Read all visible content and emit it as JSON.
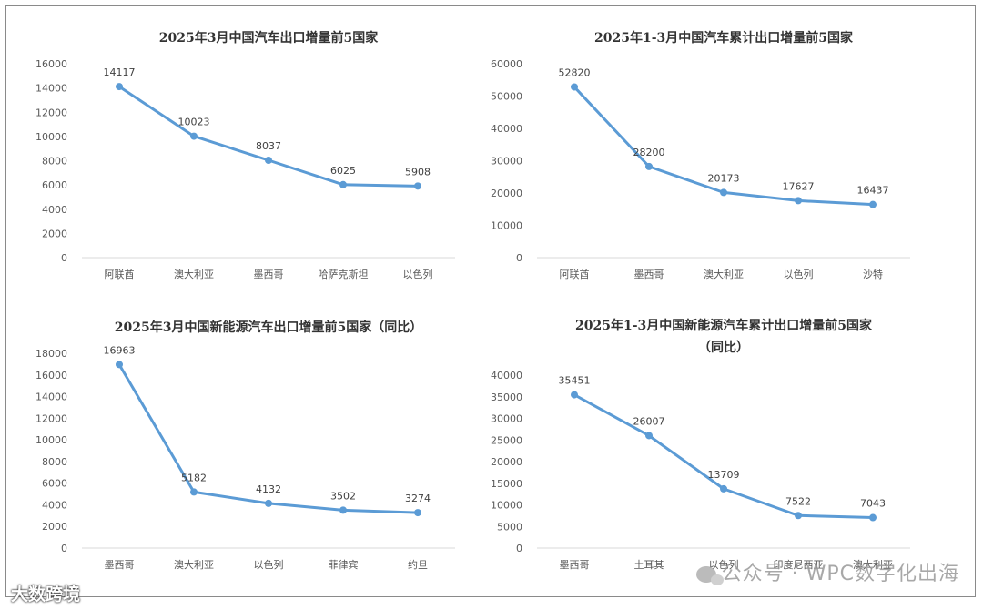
{
  "chart_data": [
    {
      "type": "line",
      "title": "2025年3月中国汽车出口增量前5国家",
      "categories": [
        "阿联酋",
        "澳大利亚",
        "墨西哥",
        "哈萨克斯坦",
        "以色列"
      ],
      "values": [
        14117,
        10023,
        8037,
        6025,
        5908
      ],
      "ylim": [
        0,
        16000
      ],
      "yticks": [
        0,
        2000,
        4000,
        6000,
        8000,
        10000,
        12000,
        14000,
        16000
      ],
      "grid": false,
      "color": "#5b9bd5"
    },
    {
      "type": "line",
      "title": "2025年1-3月中国汽车累计出口增量前5国家",
      "categories": [
        "阿联酋",
        "墨西哥",
        "澳大利亚",
        "以色列",
        "沙特"
      ],
      "values": [
        52820,
        28200,
        20173,
        17627,
        16437
      ],
      "ylim": [
        0,
        60000
      ],
      "yticks": [
        0,
        10000,
        20000,
        30000,
        40000,
        50000,
        60000
      ],
      "grid": false,
      "color": "#5b9bd5"
    },
    {
      "type": "line",
      "title": "2025年3月中国新能源汽车出口增量前5国家（同比）",
      "categories": [
        "墨西哥",
        "澳大利亚",
        "以色列",
        "菲律宾",
        "约旦"
      ],
      "values": [
        16963,
        5182,
        4132,
        3502,
        3274
      ],
      "ylim": [
        0,
        18000
      ],
      "yticks": [
        0,
        2000,
        4000,
        6000,
        8000,
        10000,
        12000,
        14000,
        16000,
        18000
      ],
      "grid": false,
      "color": "#5b9bd5"
    },
    {
      "type": "line",
      "title": "2025年1-3月中国新能源汽车累计出口增量前5国家",
      "title_line2": "（同比）",
      "categories": [
        "墨西哥",
        "土耳其",
        "以色列",
        "印度尼西亚",
        "澳大利亚"
      ],
      "values": [
        35451,
        26007,
        13709,
        7522,
        7043
      ],
      "ylim": [
        0,
        40000
      ],
      "yticks": [
        0,
        5000,
        10000,
        15000,
        20000,
        25000,
        30000,
        35000,
        40000
      ],
      "grid": false,
      "color": "#5b9bd5"
    }
  ],
  "watermarks": {
    "right": "公众号 · WPC数字化出海",
    "left": "大数跨境"
  }
}
